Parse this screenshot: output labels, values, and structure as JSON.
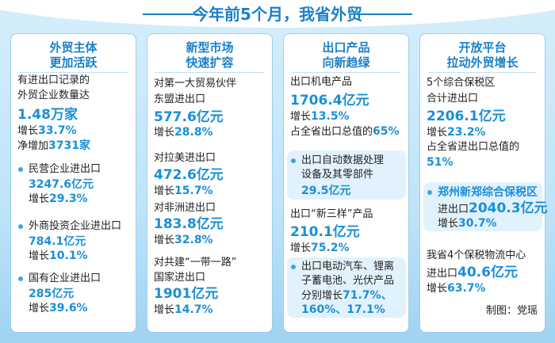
{
  "title": "今年前5个月，我省外贸",
  "panels": [
    {
      "heading": [
        "外贸主体",
        "更加活跃"
      ],
      "lines": [
        [
          "有进出口记录的"
        ],
        [
          "外贸企业数量达"
        ],
        [
          "1.48万家"
        ],
        [
          "增长",
          "33.7%"
        ],
        [
          "净增加",
          "3731家"
        ],
        [
          "民营企业进出口"
        ],
        [
          "3247.6亿元"
        ],
        [
          "增长",
          "29.3%"
        ],
        [
          "外商投资企业进出口"
        ],
        [
          "784.1亿元"
        ],
        [
          "增长",
          "10.1%"
        ],
        [
          "国有企业进出口"
        ],
        [
          "285亿元"
        ],
        [
          "增长",
          "39.6%"
        ]
      ]
    },
    {
      "heading": [
        "新型市场",
        "快速扩容"
      ],
      "lines": [
        [
          "对第一大贸易伙伴"
        ],
        [
          "东盟进出口"
        ],
        [
          "577.6亿元"
        ],
        [
          "增长",
          "28.8%"
        ],
        [
          "对拉美进出口"
        ],
        [
          "472.6亿元"
        ],
        [
          "增长",
          "15.7%"
        ],
        [
          "对非洲进出口"
        ],
        [
          "183.8亿元"
        ],
        [
          "增长",
          "32.8%"
        ],
        [
          "对共建“一带一路”"
        ],
        [
          "国家进出口"
        ],
        [
          "1901亿元"
        ],
        [
          "增长",
          "14.7%"
        ]
      ]
    },
    {
      "heading": [
        "出口产品",
        "向新趋绿"
      ],
      "lines": [
        [
          "出口机电产品"
        ],
        [
          "1706.4亿元"
        ],
        [
          "增长",
          "13.5%"
        ],
        [
          "占全省出口总值的",
          "65%"
        ],
        [
          "出口自动数据处理"
        ],
        [
          "设备及其零部件"
        ],
        [
          "29.5亿元"
        ],
        [
          "出口“新三样”产品"
        ],
        [
          "210.1亿元"
        ],
        [
          "增长",
          "75.2%"
        ],
        [
          "出口电动汽车、锂离"
        ],
        [
          "子蓄电池、光伏产品"
        ],
        [
          "分别增长",
          "71.7%、"
        ],
        [
          "160%、17.1%"
        ]
      ]
    },
    {
      "heading": [
        "开放平台",
        "拉动外贸增长"
      ],
      "lines": [
        [
          "5个综合保税区"
        ],
        [
          "合计进出口"
        ],
        [
          "2206.1亿元"
        ],
        [
          "增长",
          "23.2%"
        ],
        [
          "占全省进出口总值的"
        ],
        [
          "51%"
        ],
        [
          "郑州新郑综合保税区"
        ],
        [
          "进出口",
          "2040.3亿元"
        ],
        [
          "增长",
          "30.7%"
        ],
        [
          "我省4个保税物流中心"
        ],
        [
          "进出口",
          "40.6亿元"
        ],
        [
          "增长",
          "63.7%"
        ]
      ]
    }
  ],
  "credit": "制图：党瑶"
}
